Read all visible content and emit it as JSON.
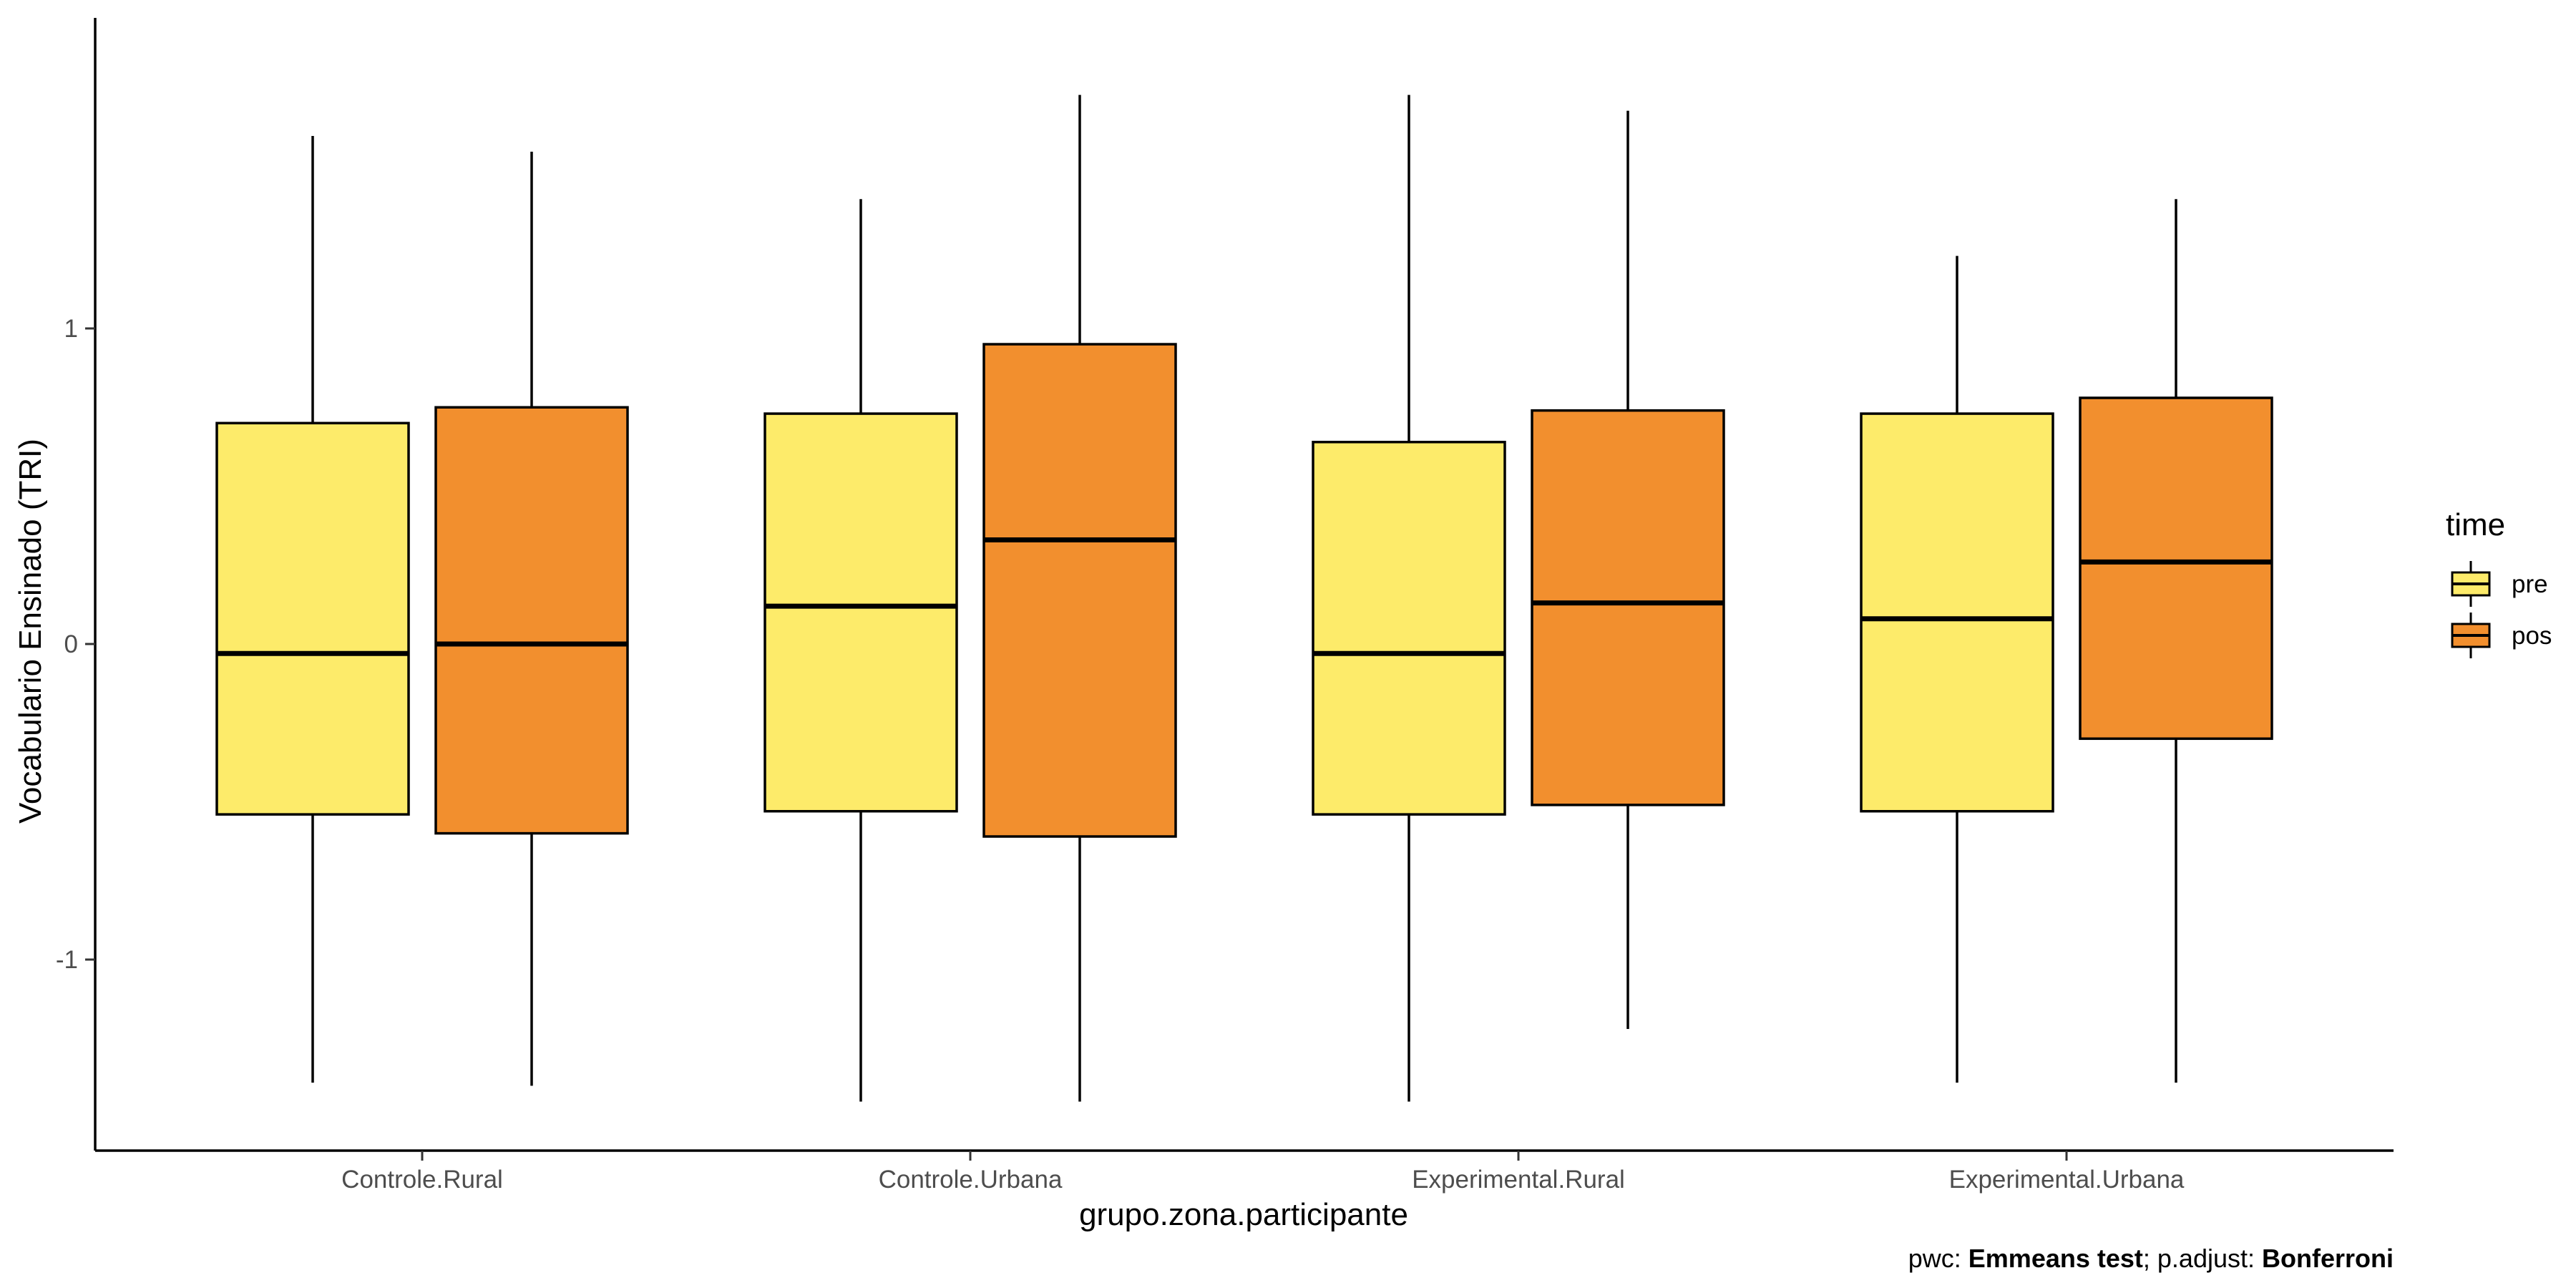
{
  "chart_data": {
    "type": "boxplot",
    "xlabel": "grupo.zona.participante",
    "ylabel": "Vocabulario Ensinado (TRI)",
    "categories": [
      "Controle.Rural",
      "Controle.Urbana",
      "Experimental.Rural",
      "Experimental.Urbana"
    ],
    "yticks": [
      -1,
      0,
      1
    ],
    "ytick_labels": [
      "-1",
      "0",
      "1"
    ],
    "ylim": [
      -1.6,
      2.0
    ],
    "grid": false,
    "legend": {
      "title": "time",
      "placement": "right",
      "entries": [
        "pre",
        "pos"
      ]
    },
    "series": [
      {
        "name": "pre",
        "color": "#FDEB6A",
        "boxes": [
          {
            "whisker_low": -1.39,
            "q1": -0.54,
            "median": -0.03,
            "q3": 0.7,
            "whisker_high": 1.61
          },
          {
            "whisker_low": -1.45,
            "q1": -0.53,
            "median": 0.12,
            "q3": 0.73,
            "whisker_high": 1.41
          },
          {
            "whisker_low": -1.45,
            "q1": -0.54,
            "median": -0.03,
            "q3": 0.64,
            "whisker_high": 1.74
          },
          {
            "whisker_low": -1.39,
            "q1": -0.53,
            "median": 0.08,
            "q3": 0.73,
            "whisker_high": 1.23
          }
        ]
      },
      {
        "name": "pos",
        "color": "#F28F2E",
        "boxes": [
          {
            "whisker_low": -1.4,
            "q1": -0.6,
            "median": 0.0,
            "q3": 0.75,
            "whisker_high": 1.56
          },
          {
            "whisker_low": -1.45,
            "q1": -0.61,
            "median": 0.33,
            "q3": 0.95,
            "whisker_high": 1.74
          },
          {
            "whisker_low": -1.22,
            "q1": -0.51,
            "median": 0.13,
            "q3": 0.74,
            "whisker_high": 1.69
          },
          {
            "whisker_low": -1.39,
            "q1": -0.3,
            "median": 0.26,
            "q3": 0.78,
            "whisker_high": 1.41
          }
        ]
      }
    ]
  },
  "caption": {
    "prefix": "pwc: ",
    "test": "Emmeans test",
    "middle": "; p.adjust: ",
    "method": "Bonferroni"
  }
}
